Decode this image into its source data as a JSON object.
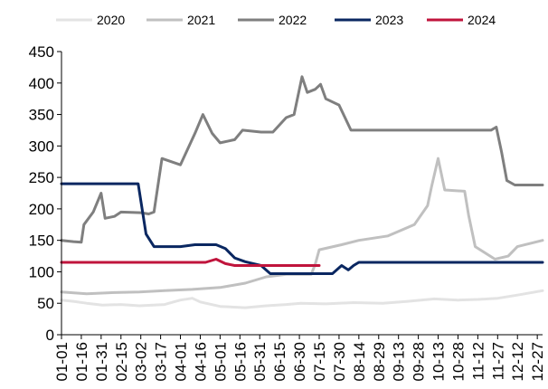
{
  "chart_data": {
    "type": "line",
    "title": "",
    "xlabel": "",
    "ylabel": "",
    "ylim": [
      0,
      450
    ],
    "yticks": [
      0,
      50,
      100,
      150,
      200,
      250,
      300,
      350,
      400,
      450
    ],
    "x_tick_labels": [
      "01-01",
      "01-16",
      "01-31",
      "02-15",
      "03-02",
      "03-17",
      "04-01",
      "04-16",
      "05-01",
      "05-16",
      "05-31",
      "06-15",
      "06-30",
      "07-15",
      "07-30",
      "08-14",
      "08-29",
      "09-13",
      "09-28",
      "10-13",
      "10-28",
      "11-12",
      "11-27",
      "12-12",
      "12-27"
    ],
    "legend_position": "top",
    "grid": false,
    "series": [
      {
        "name": "2020",
        "color": "#e3e3e3",
        "points": [
          [
            "01-01",
            55
          ],
          [
            "01-10",
            53
          ],
          [
            "01-20",
            50
          ],
          [
            "02-01",
            47
          ],
          [
            "02-15",
            48
          ],
          [
            "03-01",
            46
          ],
          [
            "03-20",
            48
          ],
          [
            "04-01",
            55
          ],
          [
            "04-10",
            58
          ],
          [
            "04-16",
            52
          ],
          [
            "05-01",
            45
          ],
          [
            "05-20",
            43
          ],
          [
            "06-05",
            46
          ],
          [
            "06-20",
            48
          ],
          [
            "07-01",
            50
          ],
          [
            "07-20",
            49
          ],
          [
            "08-10",
            51
          ],
          [
            "09-01",
            50
          ],
          [
            "09-20",
            53
          ],
          [
            "10-10",
            57
          ],
          [
            "10-28",
            55
          ],
          [
            "11-12",
            56
          ],
          [
            "11-27",
            58
          ],
          [
            "12-12",
            63
          ],
          [
            "12-31",
            70
          ]
        ]
      },
      {
        "name": "2021",
        "color": "#c0c0c0",
        "points": [
          [
            "01-01",
            68
          ],
          [
            "01-20",
            65
          ],
          [
            "02-10",
            67
          ],
          [
            "03-01",
            68
          ],
          [
            "03-20",
            70
          ],
          [
            "04-10",
            72
          ],
          [
            "05-01",
            75
          ],
          [
            "05-20",
            82
          ],
          [
            "06-05",
            92
          ],
          [
            "06-20",
            96
          ],
          [
            "07-09",
            96
          ],
          [
            "07-12",
            112
          ],
          [
            "07-15",
            135
          ],
          [
            "08-01",
            143
          ],
          [
            "08-14",
            150
          ],
          [
            "09-05",
            157
          ],
          [
            "09-25",
            175
          ],
          [
            "10-05",
            205
          ],
          [
            "10-08",
            235
          ],
          [
            "10-13",
            280
          ],
          [
            "10-18",
            230
          ],
          [
            "11-02",
            228
          ],
          [
            "11-05",
            190
          ],
          [
            "11-10",
            140
          ],
          [
            "11-25",
            120
          ],
          [
            "12-05",
            125
          ],
          [
            "12-12",
            140
          ],
          [
            "12-31",
            150
          ]
        ]
      },
      {
        "name": "2022",
        "color": "#7f7f7f",
        "points": [
          [
            "01-01",
            150
          ],
          [
            "01-10",
            148
          ],
          [
            "01-16",
            147
          ],
          [
            "01-18",
            175
          ],
          [
            "01-25",
            195
          ],
          [
            "01-31",
            225
          ],
          [
            "02-03",
            185
          ],
          [
            "02-10",
            188
          ],
          [
            "02-15",
            195
          ],
          [
            "03-02",
            194
          ],
          [
            "03-08",
            192
          ],
          [
            "03-12",
            195
          ],
          [
            "03-18",
            280
          ],
          [
            "04-01",
            270
          ],
          [
            "04-12",
            320
          ],
          [
            "04-18",
            350
          ],
          [
            "04-25",
            320
          ],
          [
            "05-01",
            305
          ],
          [
            "05-12",
            310
          ],
          [
            "05-18",
            325
          ],
          [
            "06-01",
            322
          ],
          [
            "06-10",
            322
          ],
          [
            "06-20",
            345
          ],
          [
            "06-26",
            350
          ],
          [
            "07-02",
            410
          ],
          [
            "07-06",
            385
          ],
          [
            "07-12",
            390
          ],
          [
            "07-16",
            398
          ],
          [
            "07-20",
            375
          ],
          [
            "07-30",
            365
          ],
          [
            "08-08",
            325
          ],
          [
            "08-14",
            325
          ],
          [
            "09-28",
            325
          ],
          [
            "10-28",
            325
          ],
          [
            "11-22",
            325
          ],
          [
            "11-26",
            330
          ],
          [
            "11-30",
            290
          ],
          [
            "12-04",
            245
          ],
          [
            "12-10",
            238
          ],
          [
            "12-31",
            238
          ]
        ]
      },
      {
        "name": "2023",
        "color": "#0a2761",
        "points": [
          [
            "01-01",
            240
          ],
          [
            "02-28",
            240
          ],
          [
            "03-06",
            160
          ],
          [
            "03-12",
            140
          ],
          [
            "04-01",
            140
          ],
          [
            "04-12",
            143
          ],
          [
            "04-28",
            143
          ],
          [
            "05-05",
            137
          ],
          [
            "05-12",
            122
          ],
          [
            "05-20",
            116
          ],
          [
            "06-01",
            110
          ],
          [
            "06-08",
            97
          ],
          [
            "07-25",
            97
          ],
          [
            "08-01",
            110
          ],
          [
            "08-06",
            103
          ],
          [
            "08-10",
            110
          ],
          [
            "08-14",
            115
          ],
          [
            "12-31",
            115
          ]
        ]
      },
      {
        "name": "2024",
        "color": "#c0143c",
        "points": [
          [
            "01-01",
            115
          ],
          [
            "04-20",
            115
          ],
          [
            "04-28",
            120
          ],
          [
            "05-05",
            113
          ],
          [
            "05-12",
            110
          ],
          [
            "07-15",
            110
          ]
        ]
      }
    ]
  }
}
